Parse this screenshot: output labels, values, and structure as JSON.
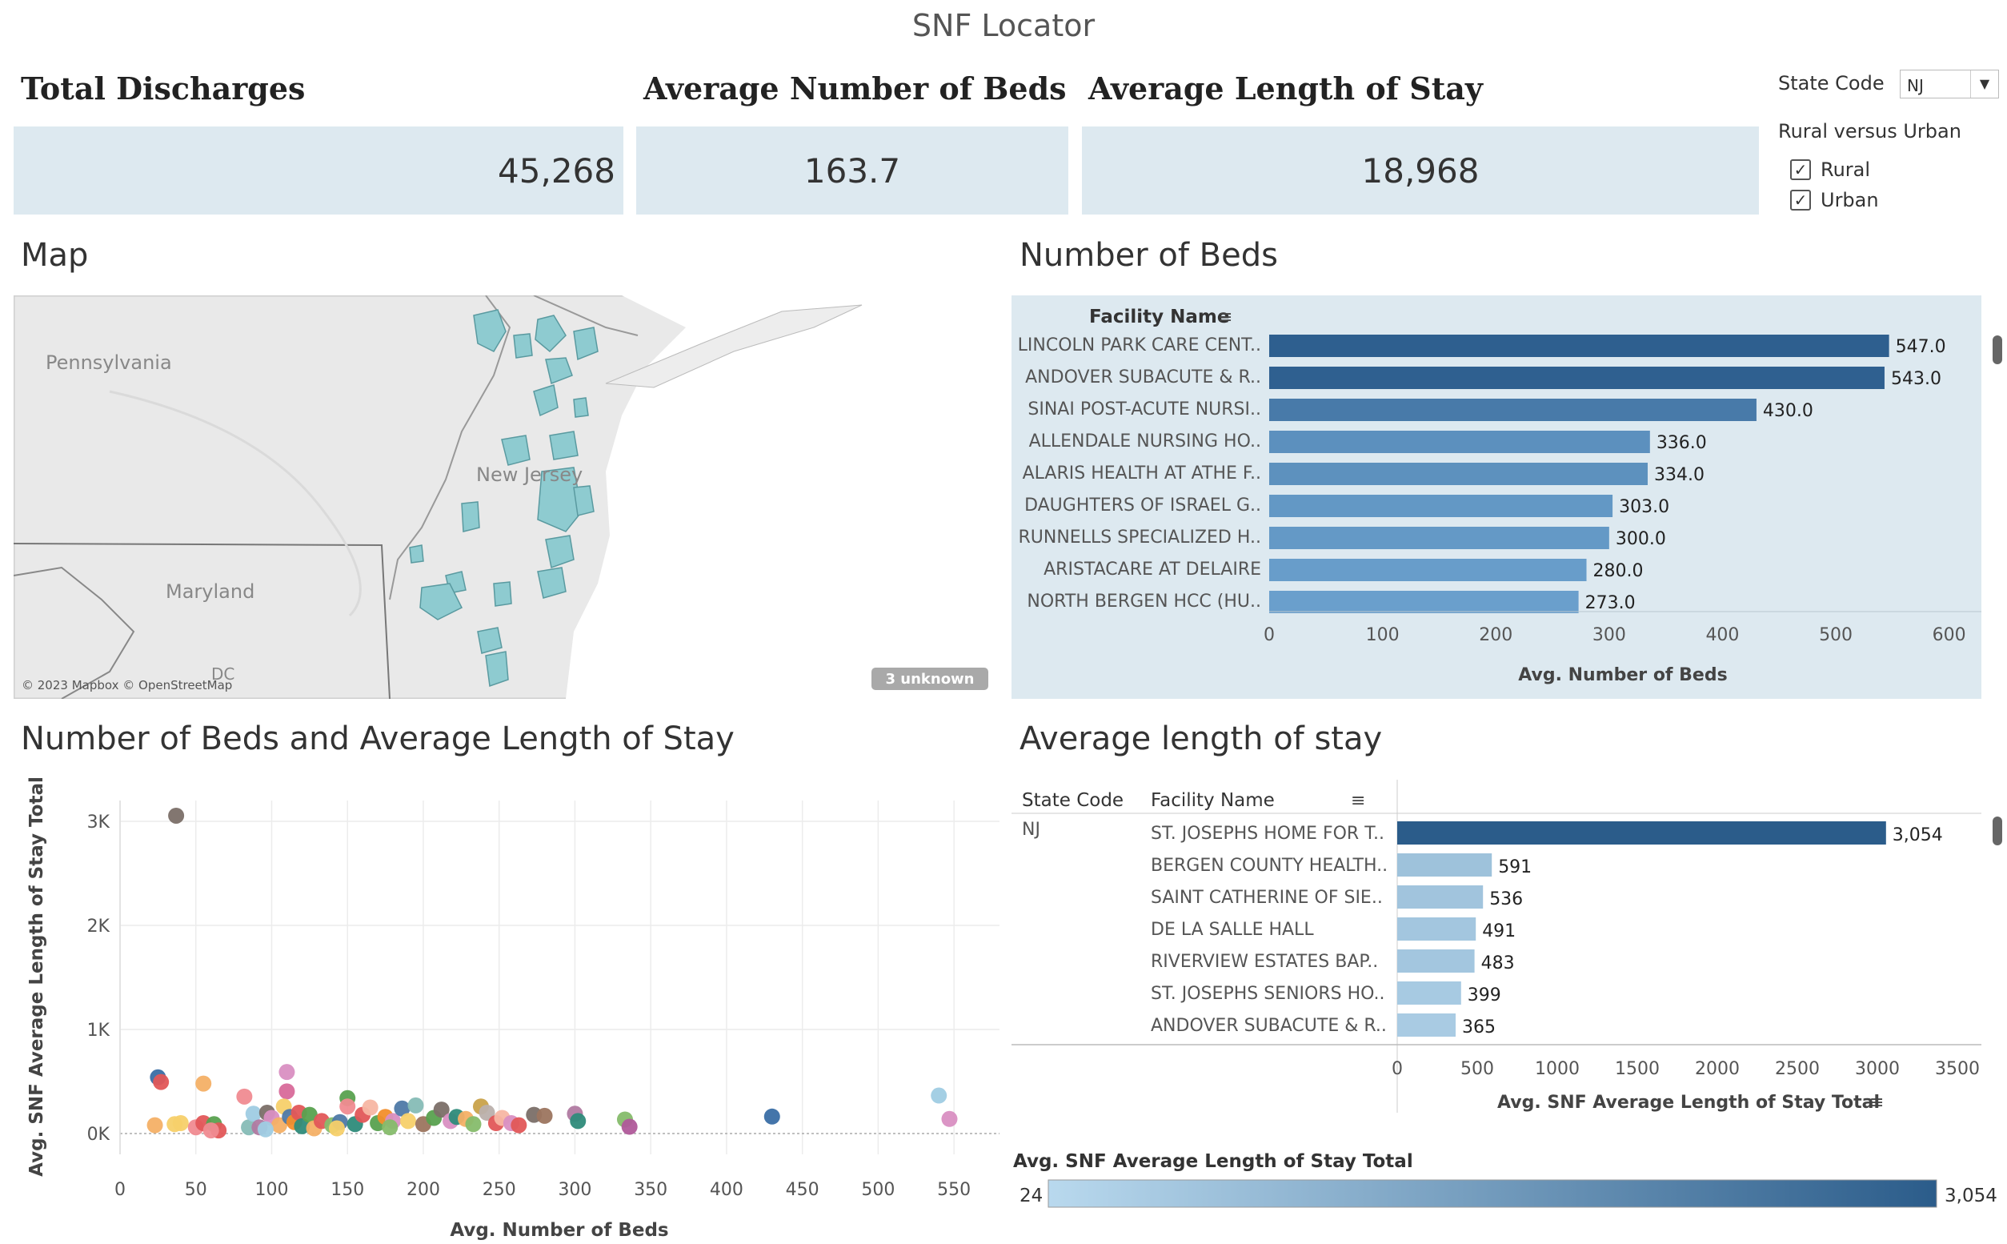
{
  "page_title": "SNF Locator",
  "kpis": [
    {
      "label": "Total Discharges",
      "value": "45,268"
    },
    {
      "label": "Average Number of Beds",
      "value": "163.7"
    },
    {
      "label": "Average Length of Stay",
      "value": "18,968"
    }
  ],
  "filters": {
    "state_label": "State Code",
    "state_value": "NJ",
    "rural_urban_label": "Rural versus Urban",
    "options": [
      {
        "label": "Rural",
        "checked": true
      },
      {
        "label": "Urban",
        "checked": true
      }
    ]
  },
  "map": {
    "title": "Map",
    "labels": {
      "pennsylvania": "Pennsylvania",
      "new_jersey": "New Jersey",
      "maryland": "Maryland",
      "dc": "DC"
    },
    "attribution": "© 2023 Mapbox © OpenStreetMap",
    "unknown_badge": "3 unknown",
    "region_color": "#8ecbd0"
  },
  "beds_chart_title": "Number of Beds",
  "scatter_title": "Number of Beds and Average Length of Stay",
  "los_chart_title": "Average length of stay",
  "legend": {
    "title": "Avg. SNF Average Length of Stay Total",
    "min": "24",
    "max": "3,054"
  },
  "chart_data": [
    {
      "id": "beds",
      "type": "bar",
      "orientation": "horizontal",
      "category_header": "Facility Name",
      "categories": [
        "LINCOLN PARK CARE CENT..",
        "ANDOVER SUBACUTE & R..",
        "SINAI POST-ACUTE NURSI..",
        "ALLENDALE NURSING HO..",
        "ALARIS HEALTH AT ATHE F..",
        "DAUGHTERS OF ISRAEL G..",
        "RUNNELLS SPECIALIZED H..",
        "ARISTACARE AT DELAIRE",
        "NORTH BERGEN HCC (HU.."
      ],
      "values": [
        547.0,
        543.0,
        430.0,
        336.0,
        334.0,
        303.0,
        300.0,
        280.0,
        273.0
      ],
      "value_labels": [
        "547.0",
        "543.0",
        "430.0",
        "336.0",
        "334.0",
        "303.0",
        "300.0",
        "280.0",
        "273.0"
      ],
      "xlabel": "Avg. Number of Beds",
      "xlim": [
        0,
        620
      ],
      "ticks": [
        0,
        100,
        200,
        300,
        400,
        500,
        600
      ]
    },
    {
      "id": "scatter",
      "type": "scatter",
      "xlabel": "Avg. Number of Beds",
      "ylabel": "Avg. SNF Average Length of Stay Total",
      "xlim": [
        0,
        580
      ],
      "ylim": [
        -200,
        3200
      ],
      "x_ticks": [
        0,
        50,
        100,
        150,
        200,
        250,
        300,
        350,
        400,
        450,
        500,
        550
      ],
      "y_ticks": [
        0,
        1000,
        2000,
        3000
      ],
      "y_tick_labels": [
        "0K",
        "1K",
        "2K",
        "3K"
      ],
      "grid": true,
      "points": [
        {
          "x": 37,
          "y": 3054,
          "color": "#7b6f68"
        },
        {
          "x": 25,
          "y": 540,
          "color": "#3a6ea5"
        },
        {
          "x": 27,
          "y": 495,
          "color": "#e15759"
        },
        {
          "x": 55,
          "y": 480,
          "color": "#f4b066"
        },
        {
          "x": 110,
          "y": 591,
          "color": "#d98fc2"
        },
        {
          "x": 110,
          "y": 405,
          "color": "#d86a9a"
        },
        {
          "x": 82,
          "y": 355,
          "color": "#f08b91"
        },
        {
          "x": 150,
          "y": 340,
          "color": "#59a14f"
        },
        {
          "x": 540,
          "y": 365,
          "color": "#9fcce3"
        },
        {
          "x": 547,
          "y": 140,
          "color": "#d98fc2"
        },
        {
          "x": 430,
          "y": 163,
          "color": "#3a6ea5"
        },
        {
          "x": 300,
          "y": 190,
          "color": "#b07aa1"
        },
        {
          "x": 302,
          "y": 120,
          "color": "#2e8b7a"
        },
        {
          "x": 333,
          "y": 135,
          "color": "#86bc6c"
        },
        {
          "x": 336,
          "y": 65,
          "color": "#b05a9a"
        },
        {
          "x": 273,
          "y": 180,
          "color": "#7b6f68"
        },
        {
          "x": 280,
          "y": 170,
          "color": "#9c755f"
        },
        {
          "x": 23,
          "y": 80,
          "color": "#f4b066"
        },
        {
          "x": 36,
          "y": 90,
          "color": "#f7d06a"
        },
        {
          "x": 40,
          "y": 100,
          "color": "#f7d06a"
        },
        {
          "x": 50,
          "y": 60,
          "color": "#f08b91"
        },
        {
          "x": 55,
          "y": 100,
          "color": "#e15759"
        },
        {
          "x": 62,
          "y": 90,
          "color": "#59a14f"
        },
        {
          "x": 65,
          "y": 30,
          "color": "#e15759"
        },
        {
          "x": 85,
          "y": 60,
          "color": "#86bcb6"
        },
        {
          "x": 88,
          "y": 190,
          "color": "#9fcce3"
        },
        {
          "x": 92,
          "y": 60,
          "color": "#b07aa1"
        },
        {
          "x": 97,
          "y": 200,
          "color": "#7b6f68"
        },
        {
          "x": 100,
          "y": 150,
          "color": "#d98fc2"
        },
        {
          "x": 105,
          "y": 80,
          "color": "#f4b066"
        },
        {
          "x": 108,
          "y": 260,
          "color": "#f7d06a"
        },
        {
          "x": 112,
          "y": 160,
          "color": "#4e79a7"
        },
        {
          "x": 115,
          "y": 110,
          "color": "#f28e2b"
        },
        {
          "x": 118,
          "y": 200,
          "color": "#e15759"
        },
        {
          "x": 120,
          "y": 70,
          "color": "#2e8b7a"
        },
        {
          "x": 125,
          "y": 180,
          "color": "#59a14f"
        },
        {
          "x": 128,
          "y": 50,
          "color": "#f4b066"
        },
        {
          "x": 133,
          "y": 120,
          "color": "#e15759"
        },
        {
          "x": 140,
          "y": 80,
          "color": "#86bc6c"
        },
        {
          "x": 145,
          "y": 110,
          "color": "#4e79a7"
        },
        {
          "x": 150,
          "y": 260,
          "color": "#f08b91"
        },
        {
          "x": 155,
          "y": 90,
          "color": "#2e8b7a"
        },
        {
          "x": 160,
          "y": 180,
          "color": "#e15759"
        },
        {
          "x": 165,
          "y": 250,
          "color": "#f7b6a3"
        },
        {
          "x": 170,
          "y": 100,
          "color": "#59a14f"
        },
        {
          "x": 175,
          "y": 160,
          "color": "#f28e2b"
        },
        {
          "x": 180,
          "y": 120,
          "color": "#d98fc2"
        },
        {
          "x": 186,
          "y": 240,
          "color": "#4e79a7"
        },
        {
          "x": 190,
          "y": 120,
          "color": "#f7d06a"
        },
        {
          "x": 195,
          "y": 270,
          "color": "#86bcb6"
        },
        {
          "x": 200,
          "y": 90,
          "color": "#9c755f"
        },
        {
          "x": 207,
          "y": 150,
          "color": "#59a14f"
        },
        {
          "x": 212,
          "y": 230,
          "color": "#7b6f68"
        },
        {
          "x": 218,
          "y": 120,
          "color": "#d98fc2"
        },
        {
          "x": 222,
          "y": 160,
          "color": "#2e8b7a"
        },
        {
          "x": 228,
          "y": 140,
          "color": "#f4b066"
        },
        {
          "x": 233,
          "y": 90,
          "color": "#86bc6c"
        },
        {
          "x": 238,
          "y": 260,
          "color": "#c9a24a"
        },
        {
          "x": 242,
          "y": 200,
          "color": "#bab0ac"
        },
        {
          "x": 248,
          "y": 100,
          "color": "#e15759"
        },
        {
          "x": 252,
          "y": 150,
          "color": "#f7b6a3"
        },
        {
          "x": 258,
          "y": 100,
          "color": "#d98fc2"
        },
        {
          "x": 263,
          "y": 80,
          "color": "#e15759"
        },
        {
          "x": 60,
          "y": 30,
          "color": "#f08b91"
        },
        {
          "x": 96,
          "y": 40,
          "color": "#9fcce3"
        },
        {
          "x": 143,
          "y": 50,
          "color": "#f7d06a"
        },
        {
          "x": 178,
          "y": 60,
          "color": "#86bc6c"
        }
      ]
    },
    {
      "id": "los",
      "type": "bar",
      "orientation": "horizontal",
      "state_header": "State Code",
      "state_value": "NJ",
      "category_header": "Facility Name",
      "categories": [
        "ST. JOSEPHS HOME FOR T..",
        "BERGEN COUNTY HEALTH..",
        "SAINT CATHERINE OF SIE..",
        "DE LA SALLE HALL",
        "RIVERVIEW ESTATES  BAP..",
        "ST. JOSEPHS SENIORS HO..",
        "ANDOVER SUBACUTE & R.."
      ],
      "values": [
        3054,
        591,
        536,
        491,
        483,
        399,
        365
      ],
      "value_labels": [
        "3,054",
        "591",
        "536",
        "491",
        "483",
        "399",
        "365"
      ],
      "xlabel": "Avg. SNF Average Length of Stay Total",
      "xlim": [
        0,
        3650
      ],
      "ticks": [
        0,
        500,
        1000,
        1500,
        2000,
        2500,
        3000,
        3500
      ]
    }
  ]
}
